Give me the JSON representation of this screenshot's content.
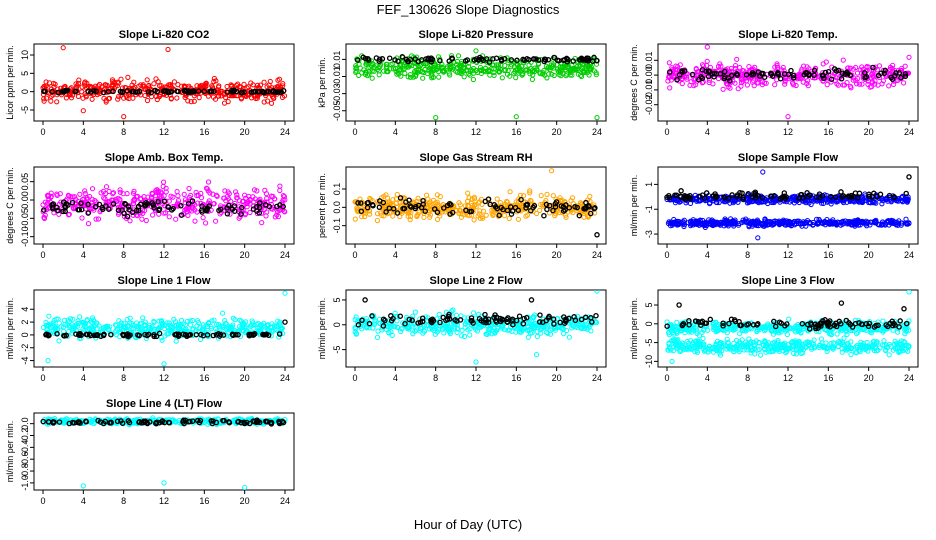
{
  "figure": {
    "title": "FEF_130626  Slope Diagnostics",
    "xlabel": "Hour of Day (UTC)"
  },
  "chart_data": [
    {
      "type": "scatter",
      "title": "Slope Li-820 CO2",
      "ylabel": "Licor ppm per min.",
      "x_range": [
        0,
        24
      ],
      "x_ticks": [
        "0",
        "4",
        "8",
        "12",
        "16",
        "20",
        "24"
      ],
      "ylim": [
        -8,
        13
      ],
      "y_ticks": [
        -5,
        0,
        5,
        10
      ],
      "y_tick_labels": [
        "-5",
        "0",
        "5",
        "10"
      ],
      "series": [
        {
          "color": "#ff0000",
          "base": 0.3,
          "spread": 2.6,
          "outliers": [
            [
              2,
              12
            ],
            [
              12.4,
              11.5
            ],
            [
              4,
              -5.2
            ],
            [
              8,
              -6.8
            ],
            [
              17,
              3.6
            ]
          ]
        },
        {
          "color": "#000000",
          "base": 0.0,
          "spread": 0.3,
          "outliers": []
        }
      ]
    },
    {
      "type": "scatter",
      "title": "Slope Li-820 Pressure",
      "ylabel": "kPa per min.",
      "x_range": [
        0,
        24
      ],
      "x_ticks": [
        "0",
        "4",
        "8",
        "12",
        "16",
        "20",
        "24"
      ],
      "ylim": [
        -0.062,
        0.028
      ],
      "y_ticks": [
        -0.05,
        -0.03,
        -0.01,
        0.01
      ],
      "y_tick_labels": [
        "-0.05",
        "-0.03",
        "-0.01",
        "0.01"
      ],
      "series": [
        {
          "color": "#00cc00",
          "base": 0.0,
          "spread": 0.011,
          "outliers": [
            [
              8,
              -0.058
            ],
            [
              16,
              -0.057
            ],
            [
              24,
              -0.058
            ],
            [
              12,
              0.02
            ]
          ]
        },
        {
          "color": "#000000",
          "base": 0.01,
          "spread": 0.003,
          "outliers": []
        }
      ]
    },
    {
      "type": "scatter",
      "title": "Slope Li-820 Temp.",
      "ylabel": "degrees C per min.",
      "x_range": [
        0,
        24
      ],
      "x_ticks": [
        "0",
        "4",
        "8",
        "12",
        "16",
        "20",
        "24"
      ],
      "ylim": [
        -0.031,
        0.021
      ],
      "y_ticks": [
        -0.02,
        -0.01,
        0.0,
        0.01
      ],
      "y_tick_labels": [
        "-0.02",
        "-0.01",
        "0.00",
        "0.01"
      ],
      "series": [
        {
          "color": "#ff00ff",
          "base": 0.0,
          "spread": 0.007,
          "outliers": [
            [
              4,
              0.019
            ],
            [
              12,
              -0.028
            ],
            [
              24,
              0.012
            ]
          ]
        },
        {
          "color": "#000000",
          "base": 0.0,
          "spread": 0.004,
          "outliers": []
        }
      ]
    },
    {
      "type": "scatter",
      "title": "Slope Amb. Box Temp.",
      "ylabel": "degrees C per min.",
      "x_range": [
        0,
        24
      ],
      "x_ticks": [
        "0",
        "4",
        "8",
        "12",
        "16",
        "20",
        "24"
      ],
      "ylim": [
        -0.12,
        0.09
      ],
      "y_ticks": [
        -0.1,
        -0.05,
        0.0,
        0.05
      ],
      "y_tick_labels": [
        "-0.10",
        "-0.05",
        "0.00",
        "0.05"
      ],
      "series": [
        {
          "color": "#ff00ff",
          "base": -0.01,
          "spread": 0.04,
          "outliers": []
        },
        {
          "color": "#000000",
          "base": -0.02,
          "spread": 0.018,
          "outliers": []
        }
      ]
    },
    {
      "type": "scatter",
      "title": "Slope Gas Stream RH",
      "ylabel": "percent per min.",
      "x_range": [
        0,
        24
      ],
      "x_ticks": [
        "0",
        "4",
        "8",
        "12",
        "16",
        "20",
        "24"
      ],
      "ylim": [
        -0.2,
        0.22
      ],
      "y_ticks": [
        -0.1,
        0.0,
        0.1
      ],
      "y_tick_labels": [
        "-0.1",
        "0.0",
        "0.1"
      ],
      "series": [
        {
          "color": "#ffa500",
          "base": 0.0,
          "spread": 0.06,
          "outliers": [
            [
              19.5,
              0.2
            ]
          ]
        },
        {
          "color": "#000000",
          "base": 0.0,
          "spread": 0.04,
          "outliers": [
            [
              24,
              -0.15
            ]
          ]
        }
      ]
    },
    {
      "type": "scatter",
      "title": "Slope Sample Flow",
      "ylabel": "ml/min per min.",
      "x_range": [
        0,
        24
      ],
      "x_ticks": [
        "0",
        "4",
        "8",
        "12",
        "16",
        "20",
        "24"
      ],
      "ylim": [
        -3.8,
        2.4
      ],
      "y_ticks": [
        -3,
        -1,
        1
      ],
      "y_tick_labels": [
        "-3",
        "-1",
        "1"
      ],
      "series": [
        {
          "color": "#0000ff",
          "base": -0.2,
          "spread": 0.3,
          "outliers": [
            [
              9,
              -3.3
            ],
            [
              9.5,
              2
            ]
          ]
        },
        {
          "color": "#0000ff",
          "base": -2.1,
          "spread": 0.25,
          "outliers": []
        },
        {
          "color": "#000000",
          "base": 0.1,
          "spread": 0.25,
          "outliers": [
            [
              24,
              1.6
            ]
          ]
        }
      ]
    },
    {
      "type": "scatter",
      "title": "Slope Line 1 Flow",
      "ylabel": "ml/min per min.",
      "x_range": [
        0,
        24
      ],
      "x_ticks": [
        "0",
        "4",
        "8",
        "12",
        "16",
        "20",
        "24"
      ],
      "ylim": [
        -5,
        7
      ],
      "y_ticks": [
        -4,
        -2,
        0,
        2,
        4
      ],
      "y_tick_labels": [
        "-4",
        "-2",
        "0",
        "2",
        "4"
      ],
      "series": [
        {
          "color": "#00ffff",
          "base": 1.0,
          "spread": 1.5,
          "outliers": [
            [
              0.5,
              -4
            ],
            [
              12,
              -4.5
            ],
            [
              24,
              6.5
            ]
          ]
        },
        {
          "color": "#000000",
          "base": 0.0,
          "spread": 0.2,
          "outliers": [
            [
              24,
              2
            ]
          ]
        }
      ]
    },
    {
      "type": "scatter",
      "title": "Slope Line 2 Flow",
      "ylabel": "ml/min per min.",
      "x_range": [
        0,
        24
      ],
      "x_ticks": [
        "0",
        "4",
        "8",
        "12",
        "16",
        "20",
        "24"
      ],
      "ylim": [
        -8.5,
        7
      ],
      "y_ticks": [
        -5,
        0,
        5
      ],
      "y_tick_labels": [
        "-5",
        "0",
        "5"
      ],
      "series": [
        {
          "color": "#00ffff",
          "base": 0.0,
          "spread": 2.0,
          "outliers": [
            [
              12,
              -7.5
            ],
            [
              24,
              6.8
            ],
            [
              18,
              -6
            ]
          ]
        },
        {
          "color": "#000000",
          "base": 1.0,
          "spread": 1.0,
          "outliers": [
            [
              1,
              5
            ],
            [
              17.5,
              5
            ]
          ]
        }
      ]
    },
    {
      "type": "scatter",
      "title": "Slope Line 3 Flow",
      "ylabel": "ml/min per min.",
      "x_range": [
        0,
        24
      ],
      "x_ticks": [
        "0",
        "4",
        "8",
        "12",
        "16",
        "20",
        "24"
      ],
      "ylim": [
        -11.5,
        9
      ],
      "y_ticks": [
        -10,
        -5,
        0,
        5
      ],
      "y_tick_labels": [
        "-10",
        "-5",
        "0",
        "5"
      ],
      "series": [
        {
          "color": "#00ffff",
          "base": -1.0,
          "spread": 1.6,
          "outliers": [
            [
              24,
              8.5
            ],
            [
              0.5,
              -10
            ]
          ]
        },
        {
          "color": "#00ffff",
          "base": -6.0,
          "spread": 1.8,
          "outliers": []
        },
        {
          "color": "#000000",
          "base": 0.0,
          "spread": 1.0,
          "outliers": [
            [
              1.2,
              5
            ],
            [
              17.3,
              5.5
            ],
            [
              23.5,
              4
            ]
          ]
        }
      ]
    },
    {
      "type": "scatter",
      "title": "Slope Line 4 (LT) Flow",
      "ylabel": "ml/min per min.",
      "x_range": [
        0,
        24
      ],
      "x_ticks": [
        "0",
        "4",
        "8",
        "12",
        "16",
        "20",
        "24"
      ],
      "ylim": [
        -1.12,
        0.18
      ],
      "y_ticks": [
        -1.0,
        -0.8,
        -0.6,
        -0.4,
        -0.2,
        0.0
      ],
      "y_tick_labels": [
        "-1.0",
        "-0.8",
        "-0.6",
        "-0.4",
        "-0.2",
        "0.0"
      ],
      "series": [
        {
          "color": "#00ffff",
          "base": 0.04,
          "spread": 0.04,
          "outliers": [
            [
              4,
              -1.05
            ],
            [
              12,
              -1.0
            ],
            [
              20,
              -1.08
            ]
          ]
        },
        {
          "color": "#000000",
          "base": 0.03,
          "spread": 0.03,
          "outliers": []
        }
      ]
    }
  ]
}
